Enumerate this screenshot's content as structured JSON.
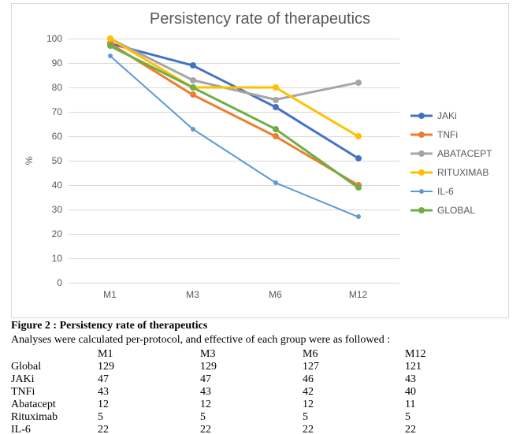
{
  "chart": {
    "type": "line",
    "title": "Persistency rate of therapeutics",
    "title_fontsize": 20,
    "title_color": "#595959",
    "background_color": "#ffffff",
    "border_color": "#d9d9d9",
    "grid_color": "#d9d9d9",
    "tick_label_color": "#595959",
    "tick_fontsize": 12,
    "y_axis": {
      "title": "%",
      "min": 0,
      "max": 100,
      "tick_step": 10
    },
    "x_categories": [
      "M1",
      "M3",
      "M6",
      "M12"
    ],
    "series": [
      {
        "name": "JAKi",
        "color": "#4472c4",
        "line_width": 3,
        "marker_size": 8,
        "values": [
          98,
          89,
          72,
          51
        ]
      },
      {
        "name": "TNFi",
        "color": "#ed7d31",
        "line_width": 3,
        "marker_size": 8,
        "values": [
          98,
          77,
          60,
          40
        ]
      },
      {
        "name": "ABATACEPT",
        "color": "#a5a5a5",
        "line_width": 3,
        "marker_size": 8,
        "values": [
          100,
          83,
          75,
          82
        ]
      },
      {
        "name": "RITUXIMAB",
        "color": "#ffc000",
        "line_width": 3,
        "marker_size": 8,
        "values": [
          100,
          80,
          80,
          60
        ]
      },
      {
        "name": "IL-6",
        "color": "#5b9bd5",
        "line_width": 2,
        "marker_size": 6,
        "values": [
          93,
          63,
          41,
          27
        ]
      },
      {
        "name": "GLOBAL",
        "color": "#70ad47",
        "line_width": 3,
        "marker_size": 8,
        "values": [
          97,
          80,
          63,
          39
        ]
      }
    ],
    "legend": {
      "position": "right",
      "fontsize": 12,
      "text_color": "#595959"
    }
  },
  "caption": {
    "label_prefix": "Figure 2 : ",
    "label_text": "Persistency rate of therapeutics",
    "note": "Analyses were calculated per-protocol, and effective of each group were as followed :"
  },
  "effective_table": {
    "columns": [
      "",
      "M1",
      "M3",
      "M6",
      "M12"
    ],
    "rows": [
      [
        "Global",
        "129",
        "129",
        "127",
        "121"
      ],
      [
        "JAKi",
        "47",
        "47",
        "46",
        "43"
      ],
      [
        "TNFi",
        "43",
        "43",
        "42",
        "40"
      ],
      [
        "Abatacept",
        "12",
        "12",
        "12",
        "11"
      ],
      [
        "Rituximab",
        "5",
        "5",
        "5",
        "5"
      ],
      [
        "IL-6",
        "22",
        "22",
        "22",
        "22"
      ]
    ],
    "font_family": "Times New Roman",
    "fontsize": 14
  }
}
